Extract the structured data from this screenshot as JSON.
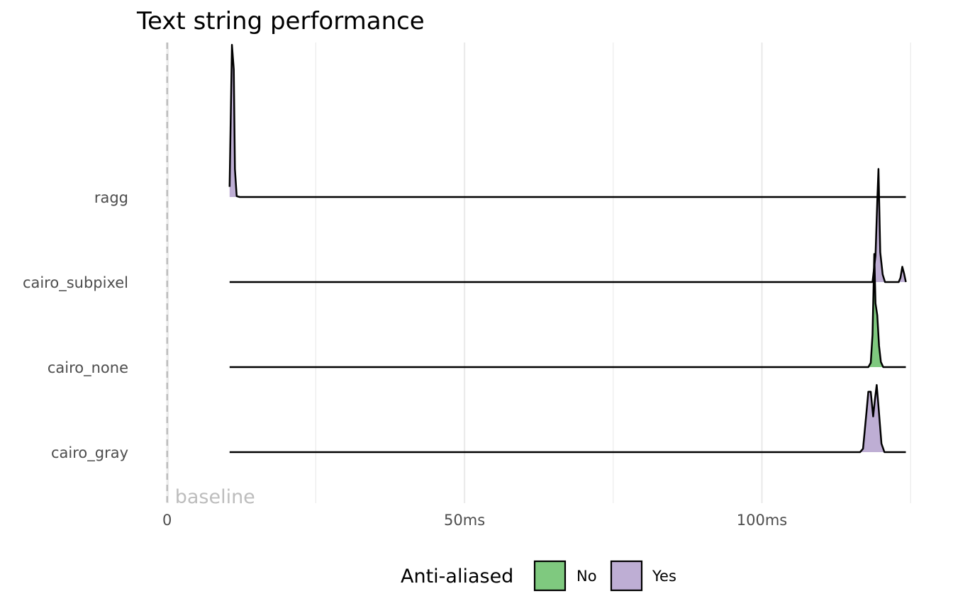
{
  "chart_data": {
    "type": "ridgeline",
    "title": "Text string performance",
    "xlabel": "",
    "ylabel": "",
    "x_unit": "ms",
    "xlim": [
      -0.8,
      124.5
    ],
    "x_ticks": [
      {
        "value": 0,
        "label": "0"
      },
      {
        "value": 50,
        "label": "50ms"
      },
      {
        "value": 100,
        "label": "100ms"
      }
    ],
    "x_minor_gridlines": [
      25,
      75,
      125
    ],
    "grid": true,
    "categories": [
      "cairo_gray",
      "cairo_none",
      "cairo_subpixel",
      "ragg"
    ],
    "series": [
      {
        "name": "cairo_gray",
        "anti_aliased": "Yes",
        "start": 10.5,
        "end": 124.2,
        "density": [
          [
            10.5,
            0
          ],
          [
            116.5,
            0
          ],
          [
            117.0,
            0.04
          ],
          [
            117.6,
            0.48
          ],
          [
            117.9,
            0.71
          ],
          [
            118.3,
            0.71
          ],
          [
            118.7,
            0.42
          ],
          [
            119.0,
            0.62
          ],
          [
            119.3,
            0.79
          ],
          [
            119.6,
            0.54
          ],
          [
            120.1,
            0.1
          ],
          [
            120.6,
            0
          ],
          [
            124.2,
            0
          ]
        ]
      },
      {
        "name": "cairo_none",
        "anti_aliased": "No",
        "start": 10.5,
        "end": 124.2,
        "density": [
          [
            10.5,
            0
          ],
          [
            117.9,
            0
          ],
          [
            118.3,
            0.05
          ],
          [
            118.6,
            0.38
          ],
          [
            118.9,
            1.33
          ],
          [
            119.1,
            0.75
          ],
          [
            119.4,
            0.61
          ],
          [
            119.7,
            0.25
          ],
          [
            120.0,
            0.06
          ],
          [
            120.4,
            0
          ],
          [
            124.2,
            0
          ]
        ]
      },
      {
        "name": "cairo_subpixel",
        "anti_aliased": "Yes",
        "start": 10.5,
        "end": 124.2,
        "density": [
          [
            10.5,
            0
          ],
          [
            118.6,
            0
          ],
          [
            119.1,
            0.31
          ],
          [
            119.4,
            0.95
          ],
          [
            119.6,
            1.33
          ],
          [
            119.9,
            0.35
          ],
          [
            120.3,
            0.09
          ],
          [
            120.7,
            0
          ],
          [
            123.0,
            0
          ],
          [
            123.3,
            0.05
          ],
          [
            123.6,
            0.18
          ],
          [
            123.9,
            0.1
          ],
          [
            124.2,
            0
          ]
        ]
      },
      {
        "name": "ragg",
        "anti_aliased": "Yes",
        "start": 10.5,
        "end": 124.2,
        "density": [
          [
            10.5,
            0.12
          ],
          [
            10.9,
            1.79
          ],
          [
            11.2,
            1.5
          ],
          [
            11.4,
            0.33
          ],
          [
            11.7,
            0.01
          ],
          [
            12.2,
            0
          ],
          [
            124.2,
            0
          ]
        ]
      }
    ],
    "reference_line": {
      "x": 0,
      "label": "baseline",
      "style": "dashed",
      "color": "#bdbdbd"
    },
    "legend": {
      "title": "Anti-aliased",
      "placement": "bottom",
      "entries": [
        {
          "label": "No",
          "color": "#7fc97f"
        },
        {
          "label": "Yes",
          "color": "#beaed4"
        }
      ]
    },
    "colors": {
      "No": "#7fc97f",
      "Yes": "#beaed4",
      "line": "#000000",
      "grid": "#ebebeb"
    }
  }
}
